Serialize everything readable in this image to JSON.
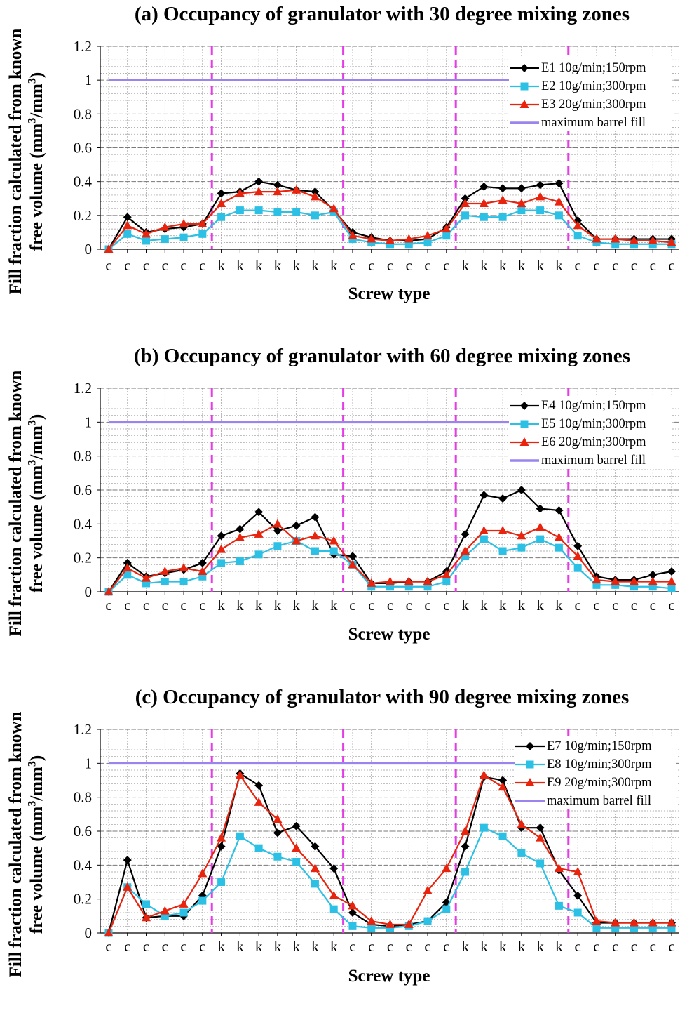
{
  "chart_data": [
    {
      "type": "line",
      "title": "(a) Occupancy of granulator with 30 degree mixing zones",
      "ylabel": "Fill fraction calculated from known free volume (mm3/mm3)",
      "xlabel": "Screw type",
      "ylim": [
        0,
        1.2
      ],
      "yticks": [
        "0",
        "0.2",
        "0.4",
        "0.6",
        "0.8",
        "1",
        "1.2"
      ],
      "categories": [
        "c",
        "c",
        "c",
        "c",
        "c",
        "c",
        "k",
        "k",
        "k",
        "k",
        "k",
        "k",
        "k",
        "c",
        "c",
        "c",
        "c",
        "c",
        "c",
        "k",
        "k",
        "k",
        "k",
        "k",
        "k",
        "c",
        "c",
        "c",
        "c",
        "c",
        "c"
      ],
      "zone_dividers": [
        5.5,
        12.5,
        18.5,
        24.5
      ],
      "legend_position": "top-right",
      "series": [
        {
          "name": "E1 10g/min;150rpm",
          "color": "#000000",
          "marker": "diamond",
          "values": [
            0,
            0.19,
            0.1,
            0.12,
            0.13,
            0.15,
            0.33,
            0.34,
            0.4,
            0.38,
            0.35,
            0.34,
            0.23,
            0.1,
            0.07,
            0.05,
            0.05,
            0.06,
            0.13,
            0.3,
            0.37,
            0.36,
            0.36,
            0.38,
            0.39,
            0.17,
            0.06,
            0.06,
            0.06,
            0.06,
            0.06
          ]
        },
        {
          "name": "E2 10g/min;300rpm",
          "color": "#2bc0e4",
          "marker": "square",
          "values": [
            0,
            0.09,
            0.05,
            0.06,
            0.07,
            0.09,
            0.19,
            0.23,
            0.23,
            0.22,
            0.22,
            0.2,
            0.22,
            0.06,
            0.04,
            0.03,
            0.03,
            0.04,
            0.08,
            0.2,
            0.19,
            0.19,
            0.23,
            0.23,
            0.2,
            0.08,
            0.04,
            0.03,
            0.03,
            0.03,
            0.03
          ]
        },
        {
          "name": "E3 20g/min;300rpm",
          "color": "#e8240e",
          "marker": "triangle",
          "values": [
            0,
            0.14,
            0.09,
            0.13,
            0.15,
            0.15,
            0.27,
            0.33,
            0.34,
            0.34,
            0.35,
            0.31,
            0.24,
            0.08,
            0.06,
            0.05,
            0.06,
            0.08,
            0.12,
            0.27,
            0.27,
            0.29,
            0.27,
            0.31,
            0.28,
            0.14,
            0.06,
            0.06,
            0.05,
            0.05,
            0.04
          ]
        },
        {
          "name": "maximum barrel fill",
          "color": "#9c84ee",
          "marker": "none",
          "values": [
            1,
            1,
            1,
            1,
            1,
            1,
            1,
            1,
            1,
            1,
            1,
            1,
            1,
            1,
            1,
            1,
            1,
            1,
            1,
            1,
            1,
            1,
            1,
            1,
            1,
            1,
            1,
            1,
            1,
            1,
            1
          ]
        }
      ]
    },
    {
      "type": "line",
      "title": "(b) Occupancy of granulator with 60 degree mixing zones",
      "ylabel": "Fill fraction calculated from known free volume (mm3/mm3)",
      "xlabel": "Screw type",
      "ylim": [
        0,
        1.2
      ],
      "yticks": [
        "0",
        "0.2",
        "0.4",
        "0.6",
        "0.8",
        "1",
        "1.2"
      ],
      "categories": [
        "c",
        "c",
        "c",
        "c",
        "c",
        "c",
        "k",
        "k",
        "k",
        "k",
        "k",
        "k",
        "k",
        "c",
        "c",
        "c",
        "c",
        "c",
        "c",
        "k",
        "k",
        "k",
        "k",
        "k",
        "k",
        "c",
        "c",
        "c",
        "c",
        "c",
        "c"
      ],
      "zone_dividers": [
        5.5,
        12.5,
        18.5,
        24.5
      ],
      "legend_position": "top-right",
      "series": [
        {
          "name": "E4 10g/min;150rpm",
          "color": "#000000",
          "marker": "diamond",
          "values": [
            0,
            0.17,
            0.09,
            0.11,
            0.13,
            0.17,
            0.33,
            0.37,
            0.47,
            0.36,
            0.39,
            0.44,
            0.22,
            0.21,
            0.05,
            0.05,
            0.06,
            0.06,
            0.12,
            0.34,
            0.57,
            0.55,
            0.6,
            0.49,
            0.48,
            0.27,
            0.09,
            0.07,
            0.07,
            0.1,
            0.12
          ]
        },
        {
          "name": "E5 10g/min;300rpm",
          "color": "#2bc0e4",
          "marker": "square",
          "values": [
            0,
            0.1,
            0.05,
            0.06,
            0.06,
            0.09,
            0.17,
            0.18,
            0.22,
            0.27,
            0.3,
            0.24,
            0.24,
            0.16,
            0.03,
            0.03,
            0.03,
            0.03,
            0.06,
            0.21,
            0.31,
            0.24,
            0.26,
            0.31,
            0.26,
            0.14,
            0.04,
            0.04,
            0.03,
            0.03,
            0.02
          ]
        },
        {
          "name": "E6 20g/min;300rpm",
          "color": "#e8240e",
          "marker": "triangle",
          "values": [
            0,
            0.14,
            0.08,
            0.12,
            0.14,
            0.12,
            0.25,
            0.32,
            0.34,
            0.4,
            0.3,
            0.33,
            0.3,
            0.16,
            0.05,
            0.06,
            0.06,
            0.06,
            0.1,
            0.24,
            0.36,
            0.36,
            0.33,
            0.38,
            0.32,
            0.21,
            0.07,
            0.06,
            0.06,
            0.06,
            0.06
          ]
        },
        {
          "name": "maximum barrel fill",
          "color": "#9c84ee",
          "marker": "none",
          "values": [
            1,
            1,
            1,
            1,
            1,
            1,
            1,
            1,
            1,
            1,
            1,
            1,
            1,
            1,
            1,
            1,
            1,
            1,
            1,
            1,
            1,
            1,
            1,
            1,
            1,
            1,
            1,
            1,
            1,
            1,
            1
          ]
        }
      ]
    },
    {
      "type": "line",
      "title": "(c) Occupancy of granulator with 90 degree mixing zones",
      "ylabel": "Fill fraction calculated from known free volume (mm3/mm3)",
      "xlabel": "Screw type",
      "ylim": [
        0,
        1.2
      ],
      "yticks": [
        "0",
        "0.2",
        "0.4",
        "0.6",
        "0.8",
        "1",
        "1.2"
      ],
      "categories": [
        "c",
        "c",
        "c",
        "c",
        "c",
        "c",
        "k",
        "k",
        "k",
        "k",
        "k",
        "k",
        "k",
        "c",
        "c",
        "c",
        "c",
        "c",
        "c",
        "k",
        "k",
        "k",
        "k",
        "k",
        "k",
        "c",
        "c",
        "c",
        "c",
        "c",
        "c"
      ],
      "zone_dividers": [
        5.5,
        12.5,
        18.5,
        24.5
      ],
      "legend_position": "top-right",
      "series": [
        {
          "name": "E7 10g/min;150rpm",
          "color": "#000000",
          "marker": "diamond",
          "values": [
            0,
            0.43,
            0.09,
            0.1,
            0.1,
            0.22,
            0.51,
            0.94,
            0.87,
            0.59,
            0.63,
            0.51,
            0.38,
            0.12,
            0.05,
            0.04,
            0.05,
            0.07,
            0.18,
            0.51,
            0.92,
            0.9,
            0.62,
            0.62,
            0.37,
            0.22,
            0.06,
            0.06,
            0.06,
            0.06,
            0.06
          ]
        },
        {
          "name": "E8 10g/min;300rpm",
          "color": "#2bc0e4",
          "marker": "square",
          "values": [
            0,
            0.27,
            0.17,
            0.1,
            0.12,
            0.19,
            0.3,
            0.57,
            0.5,
            0.45,
            0.42,
            0.29,
            0.14,
            0.04,
            0.03,
            0.03,
            0.04,
            0.07,
            0.14,
            0.36,
            0.62,
            0.57,
            0.47,
            0.41,
            0.16,
            0.12,
            0.03,
            0.03,
            0.03,
            0.03,
            0.03
          ]
        },
        {
          "name": "E9 20g/min;300rpm",
          "color": "#e8240e",
          "marker": "triangle",
          "values": [
            0,
            0.27,
            0.09,
            0.13,
            0.17,
            0.35,
            0.56,
            0.93,
            0.77,
            0.67,
            0.5,
            0.38,
            0.22,
            0.16,
            0.07,
            0.05,
            0.05,
            0.25,
            0.38,
            0.6,
            0.93,
            0.86,
            0.64,
            0.56,
            0.38,
            0.36,
            0.07,
            0.06,
            0.06,
            0.06,
            0.06
          ]
        },
        {
          "name": "maximum barrel fill",
          "color": "#9c84ee",
          "marker": "none",
          "values": [
            1,
            1,
            1,
            1,
            1,
            1,
            1,
            1,
            1,
            1,
            1,
            1,
            1,
            1,
            1,
            1,
            1,
            1,
            1,
            1,
            1,
            1,
            1,
            1,
            1,
            1,
            1,
            1,
            1,
            1,
            1
          ]
        }
      ]
    }
  ]
}
